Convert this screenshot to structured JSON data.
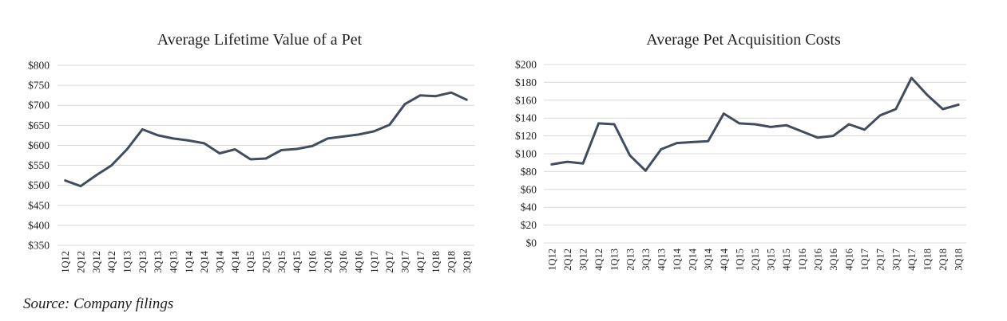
{
  "source_note": "Source: Company filings",
  "colors": {
    "line": "#414d5f",
    "grid": "#d8d8d8",
    "text": "#1f1f1f"
  },
  "chart_data": [
    {
      "type": "line",
      "title": "Average Lifetime Value of a Pet",
      "xlabel": "",
      "ylabel": "",
      "ylim": [
        350,
        800
      ],
      "ytick_step": 50,
      "ytick_prefix": "$",
      "grid": true,
      "legend": "none",
      "categories": [
        "1Q12",
        "2Q12",
        "3Q12",
        "4Q12",
        "1Q13",
        "2Q13",
        "3Q13",
        "4Q13",
        "1Q14",
        "2Q14",
        "3Q14",
        "4Q14",
        "1Q15",
        "2Q15",
        "3Q15",
        "4Q15",
        "1Q16",
        "2Q16",
        "3Q16",
        "4Q16",
        "1Q17",
        "2Q17",
        "3Q17",
        "4Q17",
        "1Q18",
        "2Q18",
        "3Q18"
      ],
      "values": [
        512,
        498,
        525,
        550,
        590,
        640,
        625,
        617,
        612,
        605,
        580,
        590,
        565,
        567,
        588,
        591,
        598,
        617,
        622,
        627,
        635,
        651,
        703,
        725,
        723,
        732,
        714
      ]
    },
    {
      "type": "line",
      "title": "Average Pet Acquisition Costs",
      "xlabel": "",
      "ylabel": "",
      "ylim": [
        0,
        200
      ],
      "ytick_step": 20,
      "ytick_prefix": "$",
      "grid": true,
      "legend": "none",
      "categories": [
        "1Q12",
        "2Q12",
        "3Q12",
        "4Q12",
        "1Q13",
        "2Q13",
        "3Q13",
        "4Q13",
        "1Q14",
        "2Q14",
        "3Q14",
        "4Q14",
        "1Q15",
        "2Q15",
        "3Q15",
        "4Q15",
        "1Q16",
        "2Q16",
        "3Q16",
        "4Q16",
        "1Q17",
        "2Q17",
        "3Q17",
        "4Q17",
        "1Q18",
        "2Q18",
        "3Q18"
      ],
      "values": [
        88,
        91,
        89,
        134,
        133,
        98,
        81,
        105,
        112,
        113,
        114,
        145,
        134,
        133,
        130,
        132,
        125,
        118,
        120,
        133,
        127,
        143,
        150,
        185,
        166,
        150,
        155
      ]
    }
  ]
}
